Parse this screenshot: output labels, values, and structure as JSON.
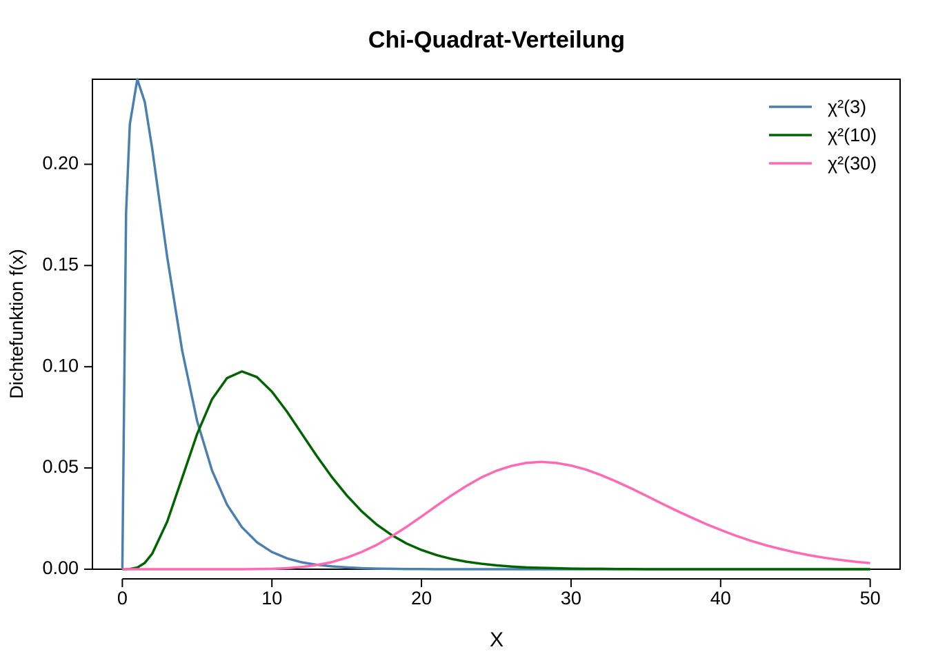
{
  "chart_data": {
    "type": "line",
    "title": "Chi-Quadrat-Verteilung",
    "x_label": "X",
    "y_label": "Dichtefunktion f(x)",
    "x": [
      0,
      0.25,
      0.5,
      1,
      1.5,
      2,
      3,
      4,
      5,
      6,
      7,
      8,
      9,
      10,
      11,
      12,
      13,
      14,
      15,
      16,
      17,
      18,
      19,
      20,
      21,
      22,
      23,
      24,
      25,
      26,
      27,
      28,
      29,
      30,
      31,
      32,
      33,
      34,
      35,
      36,
      37,
      38,
      39,
      40,
      41,
      42,
      43,
      44,
      45,
      46,
      47,
      48,
      49,
      50
    ],
    "series": [
      {
        "name": "χ²(3)",
        "color": "#4a7fb0",
        "values": [
          0,
          0.176,
          0.2197,
          0.242,
          0.2308,
          0.2076,
          0.1542,
          0.108,
          0.0732,
          0.0487,
          0.0319,
          0.0207,
          0.0133,
          0.0085,
          0.0054,
          0.0034,
          0.0022,
          0.0014,
          0.0009,
          0.0005,
          0.0003,
          0.0002,
          0.0001,
          0.0001,
          0,
          0,
          0,
          0,
          0,
          0,
          0,
          0,
          0,
          0,
          0,
          0,
          0,
          0,
          0,
          0,
          0,
          0,
          0,
          0,
          0,
          0,
          0,
          0,
          0,
          0,
          0,
          0,
          0,
          0
        ]
      },
      {
        "name": "χ²(10)",
        "color": "#006400",
        "values": [
          0,
          0,
          0.0001,
          0.0008,
          0.0031,
          0.0077,
          0.0235,
          0.0451,
          0.0668,
          0.084,
          0.0944,
          0.0977,
          0.0949,
          0.0877,
          0.0779,
          0.0669,
          0.0559,
          0.0456,
          0.0365,
          0.0286,
          0.0221,
          0.0169,
          0.0127,
          0.0095,
          0.007,
          0.0051,
          0.0037,
          0.0027,
          0.0019,
          0.0013,
          0.0009,
          0.0007,
          0.0005,
          0.0003,
          0.0002,
          0.0002,
          0.0001,
          0.0001,
          0,
          0,
          0,
          0,
          0,
          0,
          0,
          0,
          0,
          0,
          0,
          0,
          0,
          0,
          0,
          0
        ]
      },
      {
        "name": "χ²(30)",
        "color": "#ff69b4",
        "values": [
          0,
          0,
          0,
          0,
          0,
          0,
          0,
          0,
          0,
          0,
          0,
          0,
          0.0001,
          0.0002,
          0.0005,
          0.0011,
          0.0021,
          0.0035,
          0.0057,
          0.0085,
          0.012,
          0.0162,
          0.0209,
          0.026,
          0.0313,
          0.0364,
          0.0411,
          0.0453,
          0.0486,
          0.051,
          0.0525,
          0.053,
          0.0525,
          0.0512,
          0.0492,
          0.0465,
          0.0434,
          0.04,
          0.0364,
          0.0327,
          0.0291,
          0.0257,
          0.0224,
          0.0194,
          0.0166,
          0.0141,
          0.0119,
          0.01,
          0.0083,
          0.0068,
          0.0056,
          0.0046,
          0.0037,
          0.003
        ]
      }
    ],
    "xlim": [
      -2,
      52
    ],
    "ylim": [
      0,
      0.242
    ],
    "xticks": [
      0,
      10,
      20,
      30,
      40,
      50
    ],
    "yticks": [
      {
        "value": 0,
        "label": "0.00"
      },
      {
        "value": 0.05,
        "label": "0.05"
      },
      {
        "value": 0.1,
        "label": "0.10"
      },
      {
        "value": 0.15,
        "label": "0.15"
      },
      {
        "value": 0.2,
        "label": "0.20"
      }
    ],
    "legend": "top-right"
  }
}
